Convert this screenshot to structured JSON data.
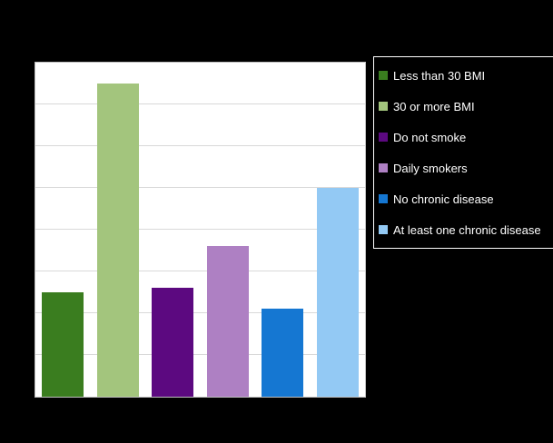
{
  "figure": {
    "background": "#000000",
    "plot_background": "#ffffff",
    "grid_color": "#d9d9d9"
  },
  "chart_data": {
    "type": "bar",
    "title": "",
    "xlabel": "",
    "ylabel": "",
    "categories": [
      "Less than 30 BMI",
      "30 or more BMI",
      "Do not smoke",
      "Daily smokers",
      "No chronic disease",
      "At least one chronic disease"
    ],
    "values": [
      25,
      75,
      26,
      36,
      21,
      50
    ],
    "bar_colors": [
      "#3a7d1f",
      "#a3c57d",
      "#5c0980",
      "#ae80c3",
      "#1577d2",
      "#93c9f4"
    ],
    "ylim": [
      0,
      80
    ],
    "grid": true,
    "gridline_count": 8,
    "legend_position": "right",
    "legend": [
      {
        "label": "Less than 30 BMI",
        "color": "#3a7d1f"
      },
      {
        "label": "30 or more BMI",
        "color": "#a3c57d"
      },
      {
        "label": "Do not smoke",
        "color": "#5c0980"
      },
      {
        "label": "Daily smokers",
        "color": "#ae80c3"
      },
      {
        "label": "No chronic disease",
        "color": "#1577d2"
      },
      {
        "label": "At least one chronic disease",
        "color": "#93c9f4"
      }
    ]
  }
}
